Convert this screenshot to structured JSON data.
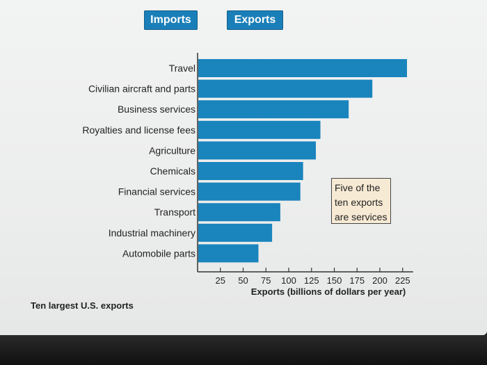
{
  "tabs": {
    "imports_label": "Imports",
    "exports_label": "Exports"
  },
  "callout": {
    "lines": [
      "Five of the",
      "ten exports",
      "are services"
    ]
  },
  "footer": {
    "title": "Ten largest U.S. exports"
  },
  "colors": {
    "bar": "#1a84bd",
    "tab": "#1a7fb8",
    "callout_bg": "#f7ead4"
  },
  "chart_data": {
    "type": "bar",
    "orientation": "horizontal",
    "title": "",
    "xlabel": "Exports (billions of dollars per year)",
    "ylabel": "",
    "xlim": [
      0,
      235
    ],
    "xticks": [
      25,
      50,
      75,
      100,
      125,
      150,
      175,
      200,
      225
    ],
    "categories": [
      "Travel",
      "Civilian aircraft and parts",
      "Business services",
      "Royalties and license fees",
      "Agriculture",
      "Chemicals",
      "Financial services",
      "Transport",
      "Industrial machinery",
      "Automobile parts"
    ],
    "values": [
      229,
      191,
      165,
      134,
      129,
      115,
      112,
      90,
      81,
      66
    ],
    "grid": false,
    "legend": "none"
  }
}
